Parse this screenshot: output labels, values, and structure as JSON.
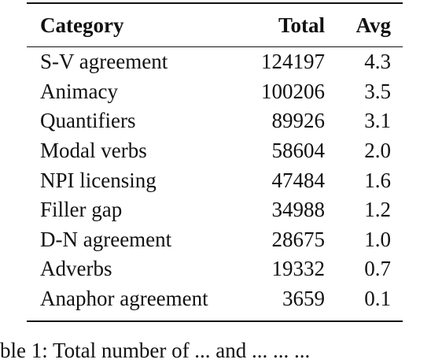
{
  "table": {
    "headers": {
      "category": "Category",
      "total": "Total",
      "avg": "Avg"
    },
    "rows": [
      {
        "category": "S-V agreement",
        "total": "124197",
        "avg": "4.3"
      },
      {
        "category": "Animacy",
        "total": "100206",
        "avg": "3.5"
      },
      {
        "category": "Quantifiers",
        "total": "89926",
        "avg": "3.1"
      },
      {
        "category": "Modal verbs",
        "total": "58604",
        "avg": "2.0"
      },
      {
        "category": "NPI licensing",
        "total": "47484",
        "avg": "1.6"
      },
      {
        "category": "Filler gap",
        "total": "34988",
        "avg": "1.2"
      },
      {
        "category": "D-N agreement",
        "total": "28675",
        "avg": "1.0"
      },
      {
        "category": "Adverbs",
        "total": "19332",
        "avg": "0.7"
      },
      {
        "category": "Anaphor agreement",
        "total": "3659",
        "avg": "0.1"
      }
    ]
  },
  "caption": "ble 1: Total number of ... and ... ... ...",
  "colors": {
    "text": "#111111",
    "background": "#ffffff"
  }
}
